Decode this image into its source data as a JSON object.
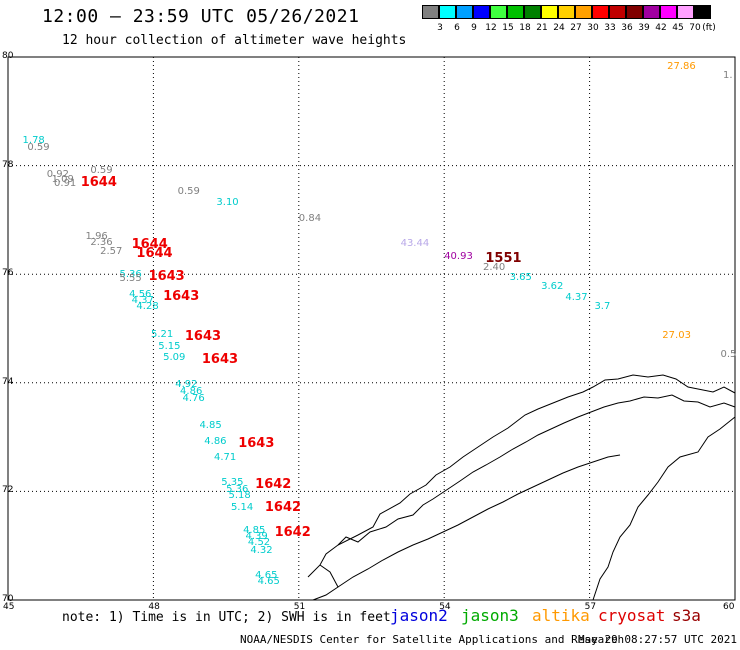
{
  "header": {
    "title": "12:00 – 23:59 UTC 05/26/2021",
    "subtitle": "12 hour collection of altimeter wave heights"
  },
  "colorbar": {
    "unit": "(ft)",
    "entries": [
      {
        "label": "3",
        "color": "#808080"
      },
      {
        "label": "6",
        "color": "#00ffff"
      },
      {
        "label": "9",
        "color": "#00a0ff"
      },
      {
        "label": "12",
        "color": "#0000ff"
      },
      {
        "label": "15",
        "color": "#40ff40"
      },
      {
        "label": "18",
        "color": "#00c000"
      },
      {
        "label": "21",
        "color": "#008000"
      },
      {
        "label": "24",
        "color": "#ffff00"
      },
      {
        "label": "27",
        "color": "#ffd000"
      },
      {
        "label": "30",
        "color": "#ffa000"
      },
      {
        "label": "33",
        "color": "#ff0000"
      },
      {
        "label": "36",
        "color": "#c00000"
      },
      {
        "label": "39",
        "color": "#800000"
      },
      {
        "label": "42",
        "color": "#a000a0"
      },
      {
        "label": "45",
        "color": "#ff00ff"
      },
      {
        "label": "70",
        "color": "#ffa0ff"
      },
      {
        "label": "",
        "color": "#000000"
      }
    ]
  },
  "map": {
    "lon_min": 45,
    "lon_max": 60,
    "lat_min": 70,
    "lat_max": 80,
    "lat_ticks": [
      "80",
      "78",
      "76",
      "74",
      "72",
      "70"
    ],
    "lon_ticks": [
      "45",
      "48",
      "51",
      "54",
      "57",
      "60"
    ],
    "observations": [
      {
        "text": "1.78",
        "lon": 45.3,
        "lat": 78.55,
        "color": "#00cccc"
      },
      {
        "text": "0.59",
        "lon": 45.4,
        "lat": 78.42,
        "color": "#808080"
      },
      {
        "text": "0.92",
        "lon": 45.8,
        "lat": 77.92,
        "color": "#808080"
      },
      {
        "text": "1.09",
        "lon": 45.9,
        "lat": 77.82,
        "color": "#808080"
      },
      {
        "text": "0.91",
        "lon": 45.95,
        "lat": 77.75,
        "color": "#808080"
      },
      {
        "text": "0.59",
        "lon": 46.7,
        "lat": 78.0,
        "color": "#808080"
      },
      {
        "text": "1644",
        "lon": 46.5,
        "lat": 77.8,
        "color": "#ee0000",
        "pass": true
      },
      {
        "text": "0.59",
        "lon": 48.5,
        "lat": 77.6,
        "color": "#808080"
      },
      {
        "text": "3.10",
        "lon": 49.3,
        "lat": 77.4,
        "color": "#00cccc"
      },
      {
        "text": "0.84",
        "lon": 51.0,
        "lat": 77.1,
        "color": "#808080"
      },
      {
        "text": "1.96",
        "lon": 46.6,
        "lat": 76.78,
        "color": "#808080"
      },
      {
        "text": "2.36",
        "lon": 46.7,
        "lat": 76.66,
        "color": "#808080"
      },
      {
        "text": "2.57",
        "lon": 46.9,
        "lat": 76.5,
        "color": "#808080"
      },
      {
        "text": "1644",
        "lon": 47.55,
        "lat": 76.66,
        "color": "#ee0000",
        "pass": true
      },
      {
        "text": "1644",
        "lon": 47.65,
        "lat": 76.5,
        "color": "#ee0000",
        "pass": true
      },
      {
        "text": "43.44",
        "lon": 53.1,
        "lat": 76.65,
        "color": "#b8a8e8"
      },
      {
        "text": "40.93",
        "lon": 54.0,
        "lat": 76.4,
        "color": "#a000a0"
      },
      {
        "text": "1551",
        "lon": 54.85,
        "lat": 76.4,
        "color": "#800000",
        "pass": true
      },
      {
        "text": "2.40",
        "lon": 54.8,
        "lat": 76.2,
        "color": "#808080"
      },
      {
        "text": "3.65",
        "lon": 55.35,
        "lat": 76.03,
        "color": "#00cccc"
      },
      {
        "text": "3.62",
        "lon": 56.0,
        "lat": 75.85,
        "color": "#00cccc"
      },
      {
        "text": "4.37",
        "lon": 56.5,
        "lat": 75.65,
        "color": "#00cccc"
      },
      {
        "text": "3.7",
        "lon": 57.1,
        "lat": 75.48,
        "color": "#00cccc"
      },
      {
        "text": "5.36",
        "lon": 47.3,
        "lat": 76.08,
        "color": "#00cccc"
      },
      {
        "text": "5.55",
        "lon": 47.3,
        "lat": 76.0,
        "color": "#808080"
      },
      {
        "text": "1643",
        "lon": 47.9,
        "lat": 76.08,
        "color": "#ee0000",
        "pass": true
      },
      {
        "text": "4.56",
        "lon": 47.5,
        "lat": 75.7,
        "color": "#00cccc"
      },
      {
        "text": "4.37",
        "lon": 47.55,
        "lat": 75.6,
        "color": "#00cccc"
      },
      {
        "text": "4.28",
        "lon": 47.65,
        "lat": 75.48,
        "color": "#00cccc"
      },
      {
        "text": "1643",
        "lon": 48.2,
        "lat": 75.7,
        "color": "#ee0000",
        "pass": true
      },
      {
        "text": "5.21",
        "lon": 47.95,
        "lat": 74.98,
        "color": "#00cccc"
      },
      {
        "text": "5.15",
        "lon": 48.1,
        "lat": 74.76,
        "color": "#00cccc"
      },
      {
        "text": "5.09",
        "lon": 48.2,
        "lat": 74.55,
        "color": "#00cccc"
      },
      {
        "text": "1643",
        "lon": 48.65,
        "lat": 74.98,
        "color": "#ee0000",
        "pass": true
      },
      {
        "text": "1643",
        "lon": 49.0,
        "lat": 74.55,
        "color": "#ee0000",
        "pass": true
      },
      {
        "text": "4.92",
        "lon": 48.45,
        "lat": 74.05,
        "color": "#00cccc"
      },
      {
        "text": "4.86",
        "lon": 48.55,
        "lat": 73.93,
        "color": "#00cccc"
      },
      {
        "text": "4.76",
        "lon": 48.6,
        "lat": 73.8,
        "color": "#00cccc"
      },
      {
        "text": "4.85",
        "lon": 48.95,
        "lat": 73.3,
        "color": "#00cccc"
      },
      {
        "text": "4.86",
        "lon": 49.05,
        "lat": 73.0,
        "color": "#00cccc"
      },
      {
        "text": "1643",
        "lon": 49.75,
        "lat": 73.0,
        "color": "#ee0000",
        "pass": true
      },
      {
        "text": "4.71",
        "lon": 49.25,
        "lat": 72.7,
        "color": "#00cccc"
      },
      {
        "text": "5.35",
        "lon": 49.4,
        "lat": 72.25,
        "color": "#00cccc"
      },
      {
        "text": "5.36",
        "lon": 49.5,
        "lat": 72.12,
        "color": "#00cccc"
      },
      {
        "text": "5.18",
        "lon": 49.55,
        "lat": 72.0,
        "color": "#00cccc"
      },
      {
        "text": "5.14",
        "lon": 49.6,
        "lat": 71.78,
        "color": "#00cccc"
      },
      {
        "text": "1642",
        "lon": 50.1,
        "lat": 72.25,
        "color": "#ee0000",
        "pass": true
      },
      {
        "text": "1642",
        "lon": 50.3,
        "lat": 71.82,
        "color": "#ee0000",
        "pass": true
      },
      {
        "text": "4.85",
        "lon": 49.85,
        "lat": 71.36,
        "color": "#00cccc"
      },
      {
        "text": "4.39",
        "lon": 49.9,
        "lat": 71.25,
        "color": "#00cccc"
      },
      {
        "text": "4.52",
        "lon": 49.95,
        "lat": 71.15,
        "color": "#00cccc"
      },
      {
        "text": "4.32",
        "lon": 50.0,
        "lat": 71.0,
        "color": "#00cccc"
      },
      {
        "text": "1642",
        "lon": 50.5,
        "lat": 71.36,
        "color": "#ee0000",
        "pass": true
      },
      {
        "text": "4.65",
        "lon": 50.1,
        "lat": 70.53,
        "color": "#00cccc"
      },
      {
        "text": "4.65",
        "lon": 50.15,
        "lat": 70.43,
        "color": "#00cccc"
      },
      {
        "text": "27.86",
        "lon": 58.6,
        "lat": 79.9,
        "color": "#ff9900"
      },
      {
        "text": "1.",
        "lon": 59.85,
        "lat": 79.75,
        "color": "#808080"
      },
      {
        "text": "27.03",
        "lon": 58.5,
        "lat": 74.95,
        "color": "#ff9900"
      },
      {
        "text": "0.5",
        "lon": 59.7,
        "lat": 74.6,
        "color": "#808080"
      }
    ]
  },
  "footer": {
    "note": "note: 1) Time is in UTC; 2) SWH is in feet",
    "satellites": [
      {
        "name": "jason2",
        "color": "#0000dd"
      },
      {
        "name": "jason3",
        "color": "#00aa00"
      },
      {
        "name": "altika",
        "color": "#ff9900"
      },
      {
        "name": "cryosat",
        "color": "#dd0000"
      },
      {
        "name": "s3a",
        "color": "#990000"
      }
    ],
    "credit": "NOAA/NESDIS Center for Satellite Applications and Research",
    "date": "May 29 08:27:57 UTC 2021"
  }
}
